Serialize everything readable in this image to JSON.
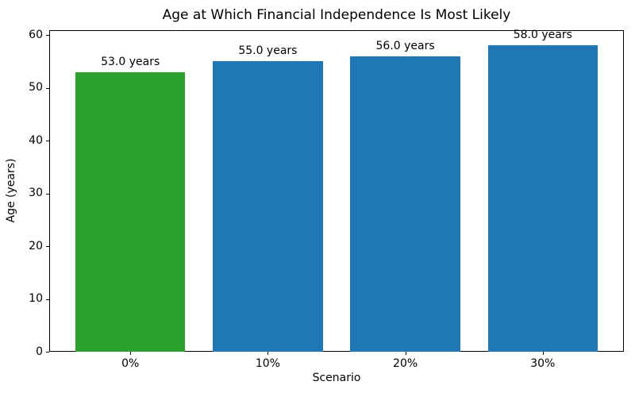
{
  "figure": {
    "background": "#ffffff",
    "text_color": "#000000"
  },
  "chart_data": {
    "type": "bar",
    "title": "Age at Which Financial Independence Is Most Likely",
    "xlabel": "Scenario",
    "ylabel": "Age (years)",
    "categories": [
      "0%",
      "10%",
      "20%",
      "30%"
    ],
    "values": [
      53.0,
      55.0,
      56.0,
      58.0
    ],
    "bar_labels": [
      "53.0 years",
      "55.0 years",
      "56.0 years",
      "58.0 years"
    ],
    "bar_colors": [
      "#2ca02c",
      "#1f77b4",
      "#1f77b4",
      "#1f77b4"
    ],
    "yticks": [
      0,
      10,
      20,
      30,
      40,
      50,
      60
    ],
    "ylim": [
      0,
      60.9
    ],
    "xlim": [
      -0.59,
      3.59
    ],
    "bar_width_units": 0.8,
    "grid": false,
    "legend": null
  }
}
